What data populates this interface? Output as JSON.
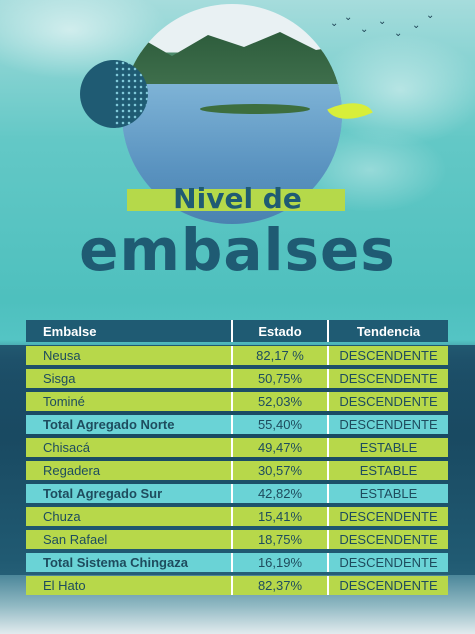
{
  "title": {
    "line1": "Nivel de",
    "line2": "embalses"
  },
  "table": {
    "headers": [
      "Embalse",
      "Estado",
      "Tendencia"
    ],
    "rows": [
      {
        "name": "Neusa",
        "estado": "82,17 %",
        "tendencia": "DESCENDENTE",
        "type": "reservoir"
      },
      {
        "name": "Sisga",
        "estado": "50,75%",
        "tendencia": "DESCENDENTE",
        "type": "reservoir"
      },
      {
        "name": "Tominé",
        "estado": "52,03%",
        "tendencia": "DESCENDENTE",
        "type": "reservoir"
      },
      {
        "name": "Total Agregado Norte",
        "estado": "55,40%",
        "tendencia": "DESCENDENTE",
        "type": "total"
      },
      {
        "name": "Chisacá",
        "estado": "49,47%",
        "tendencia": "ESTABLE",
        "type": "reservoir"
      },
      {
        "name": "Regadera",
        "estado": "30,57%",
        "tendencia": "ESTABLE",
        "type": "reservoir"
      },
      {
        "name": "Total Agregado Sur",
        "estado": "42,82%",
        "tendencia": "ESTABLE",
        "type": "total"
      },
      {
        "name": "Chuza",
        "estado": "15,41%",
        "tendencia": "DESCENDENTE",
        "type": "reservoir"
      },
      {
        "name": "San Rafael",
        "estado": "18,75%",
        "tendencia": "DESCENDENTE",
        "type": "reservoir"
      },
      {
        "name": "Total Sistema Chingaza",
        "estado": "16,19%",
        "tendencia": "DESCENDENTE",
        "type": "total"
      },
      {
        "name": "El Hato",
        "estado": "82,37%",
        "tendencia": "DESCENDENTE",
        "type": "reservoir"
      }
    ]
  },
  "colors": {
    "header": "#1f5b73",
    "reservoir_row": "#b7d84a",
    "total_row": "#6ad3d6",
    "title": "#1f5b73"
  }
}
